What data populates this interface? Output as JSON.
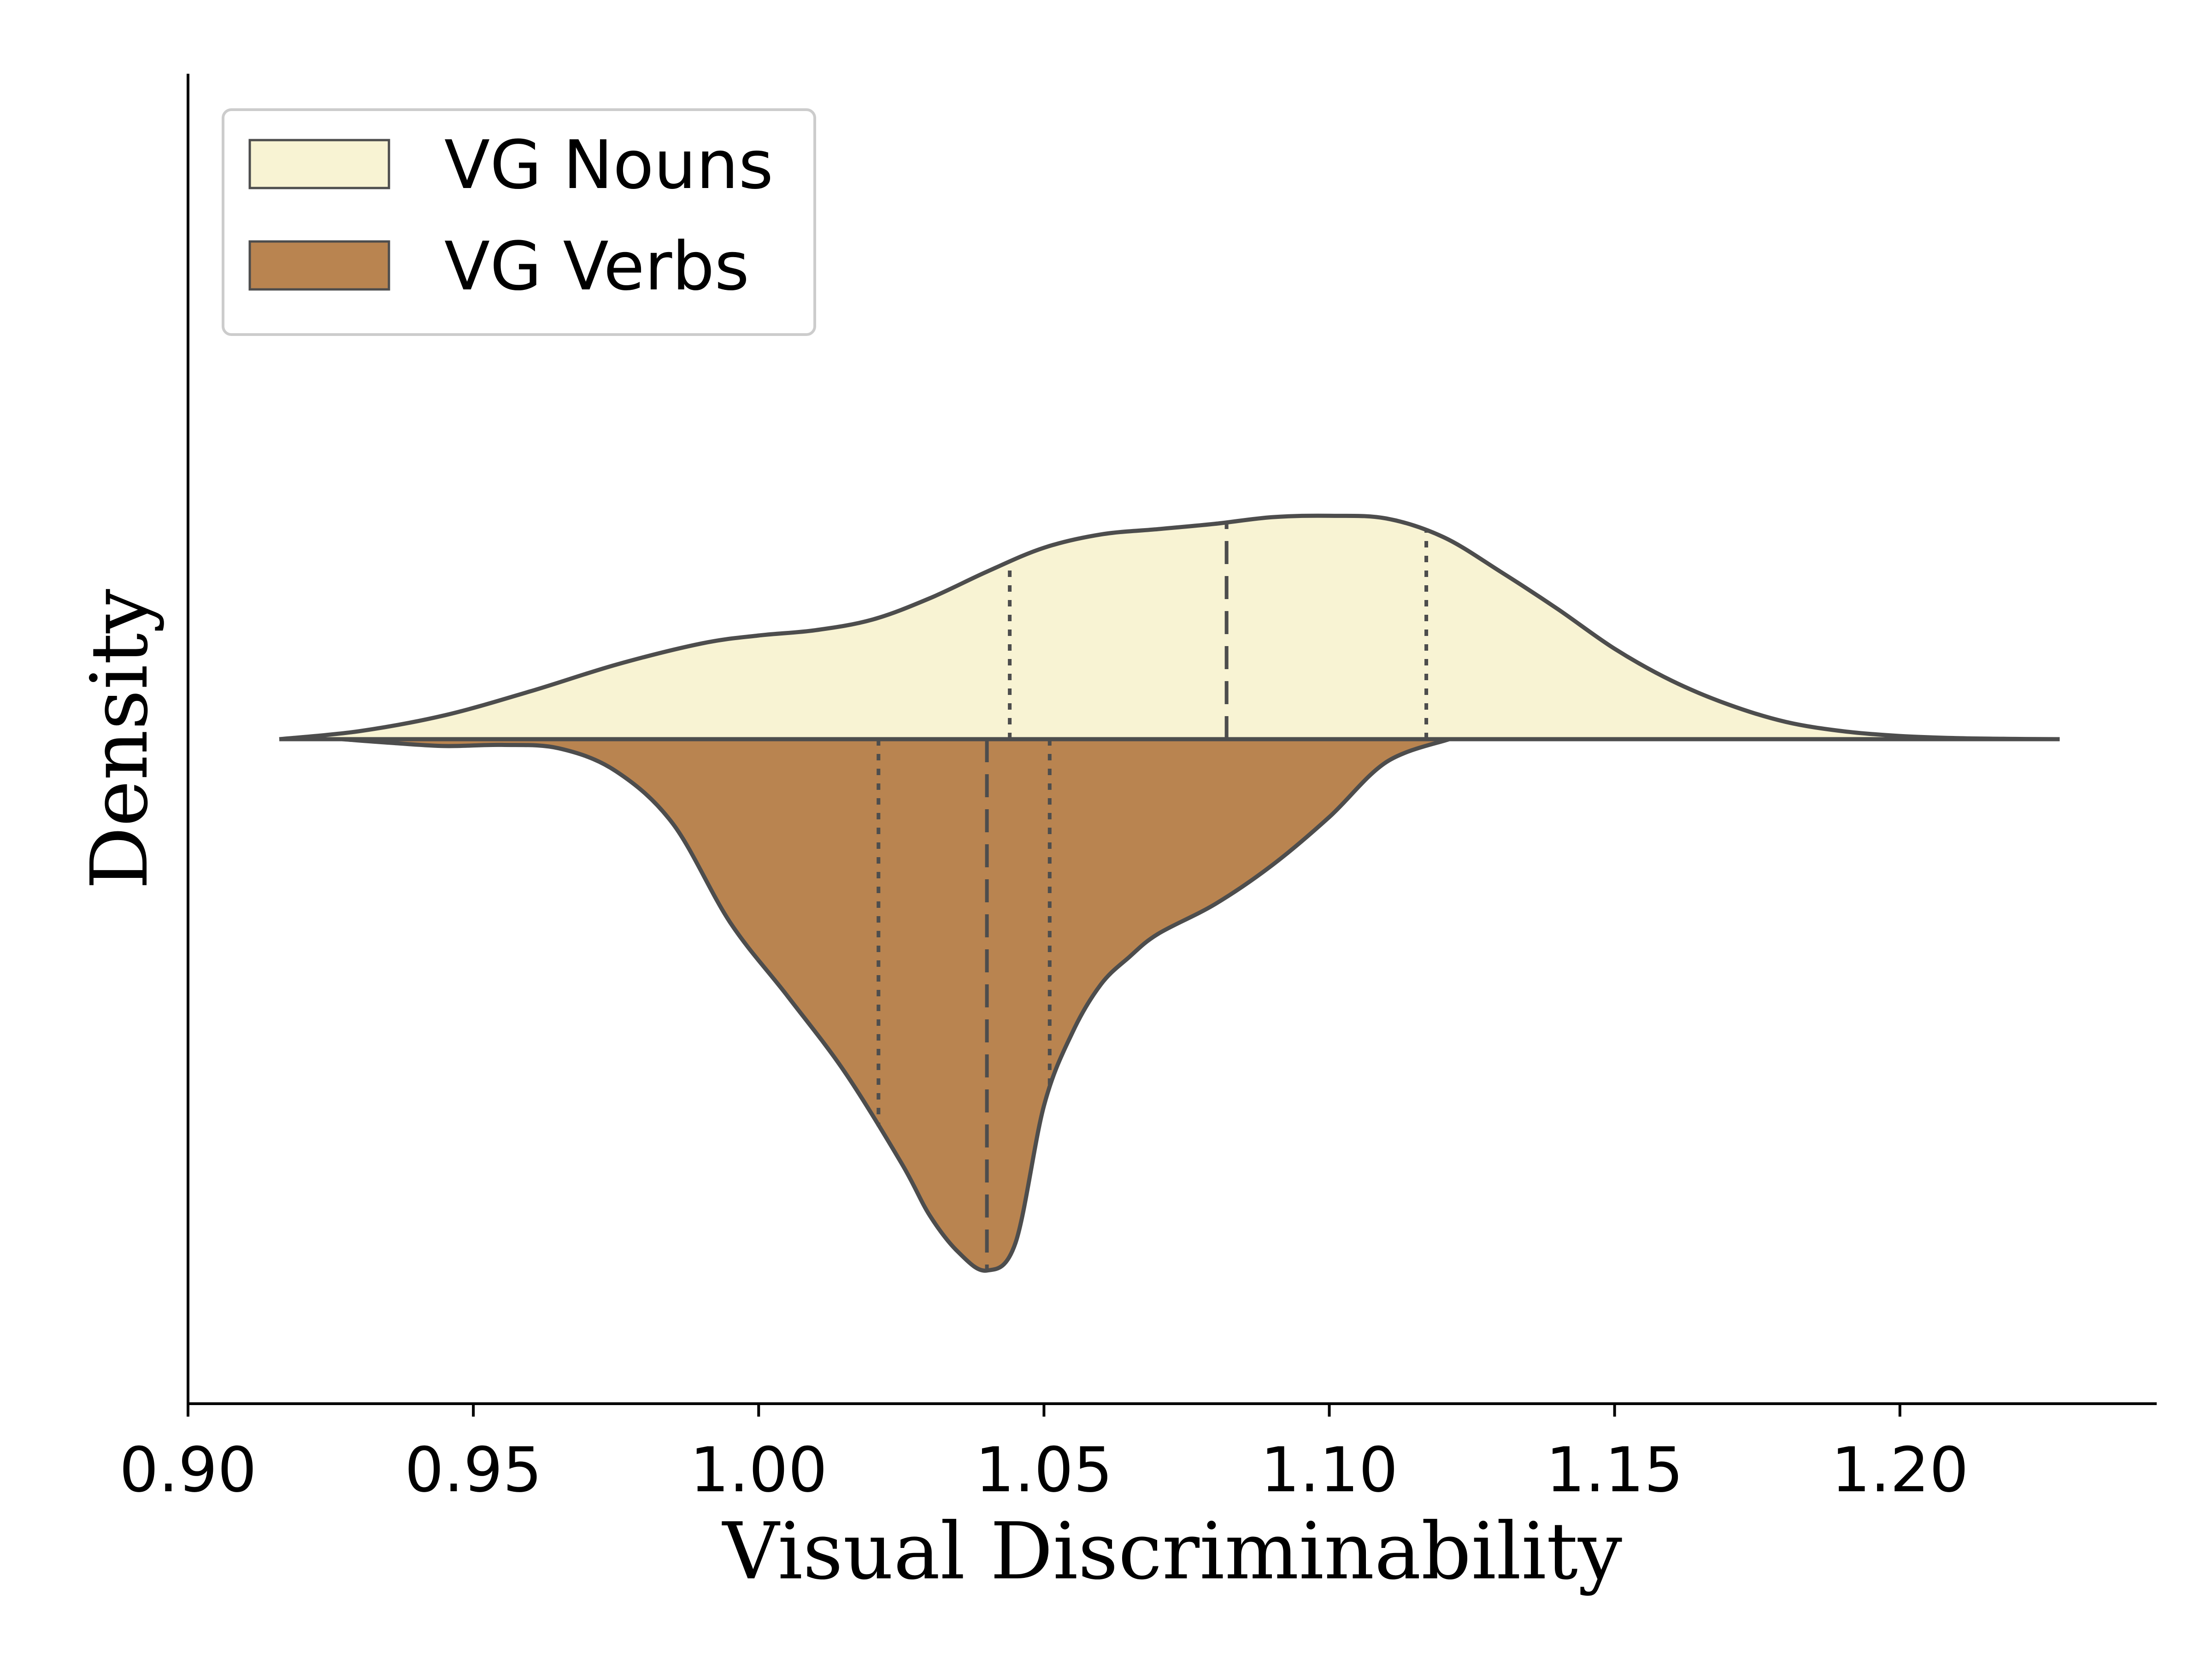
{
  "chart_data": {
    "type": "violin",
    "split": true,
    "xlabel": "Visual Discriminability",
    "ylabel": "Density",
    "xlim": [
      0.9,
      1.245
    ],
    "xticks": [
      "0.90",
      "0.95",
      "1.00",
      "1.05",
      "1.10",
      "1.15",
      "1.20"
    ],
    "legend": {
      "placement": "upper-left"
    },
    "series": [
      {
        "name": "VG Nouns",
        "side": "upper",
        "color": "#f8f3d3",
        "x": [
          0.916,
          0.93,
          0.945,
          0.96,
          0.975,
          0.99,
          1.0,
          1.01,
          1.02,
          1.03,
          1.04,
          1.05,
          1.06,
          1.07,
          1.08,
          1.09,
          1.1,
          1.11,
          1.12,
          1.13,
          1.14,
          1.15,
          1.16,
          1.17,
          1.18,
          1.19,
          1.2,
          1.21,
          1.22,
          1.228
        ],
        "density": [
          0.0,
          0.03,
          0.09,
          0.18,
          0.28,
          0.36,
          0.39,
          0.41,
          0.45,
          0.53,
          0.63,
          0.72,
          0.77,
          0.79,
          0.81,
          0.835,
          0.84,
          0.83,
          0.76,
          0.63,
          0.49,
          0.34,
          0.22,
          0.13,
          0.065,
          0.03,
          0.012,
          0.004,
          0.001,
          0.0
        ],
        "quartiles": {
          "q1": 1.044,
          "median": 1.082,
          "q3": 1.117
        }
      },
      {
        "name": "VG Verbs",
        "side": "lower",
        "color": "#b98450",
        "x": [
          0.927,
          0.935,
          0.945,
          0.955,
          0.965,
          0.975,
          0.985,
          0.995,
          1.005,
          1.015,
          1.025,
          1.03,
          1.035,
          1.04,
          1.045,
          1.05,
          1.055,
          1.06,
          1.065,
          1.07,
          1.08,
          1.09,
          1.1,
          1.11,
          1.121
        ],
        "density": [
          0.0,
          0.015,
          0.03,
          0.025,
          0.04,
          0.14,
          0.37,
          0.8,
          1.12,
          1.45,
          1.85,
          2.08,
          2.24,
          2.32,
          2.2,
          1.6,
          1.28,
          1.07,
          0.95,
          0.85,
          0.72,
          0.55,
          0.34,
          0.1,
          0.0
        ],
        "quartiles": {
          "q1": 1.021,
          "median": 1.04,
          "q3": 1.051
        }
      }
    ]
  }
}
